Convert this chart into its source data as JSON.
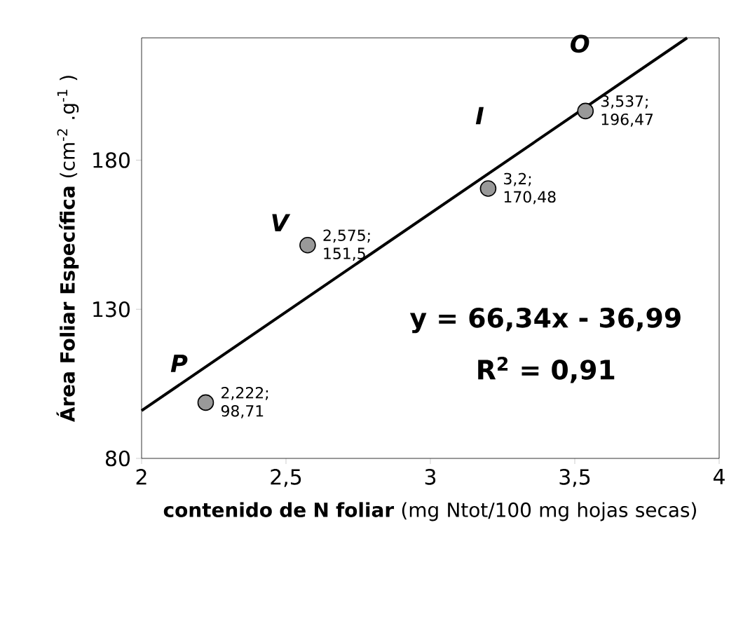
{
  "chart_data": {
    "type": "scatter",
    "xlabel": "**contenido de N foliar** (mg Ntot/100 mg hojas secas)",
    "ylabel": "**Área Foliar Específica** (cm$^{-2}$ .g$^{-1}$ )",
    "xlim": [
      2,
      4
    ],
    "ylim": [
      80,
      221
    ],
    "xticks": [
      2,
      {
        "value": 2.5,
        "label": "2,5"
      },
      3,
      {
        "value": 3.5,
        "label": "3,5"
      },
      4
    ],
    "yticks": [
      80,
      130,
      180
    ],
    "series": [
      {
        "marker": "circle",
        "color": "#999999",
        "x": [
          2.222,
          2.575,
          3.2,
          3.537
        ],
        "values": [
          98.71,
          151.5,
          170.48,
          196.47
        ],
        "value_labels": [
          "2,222; 98,71",
          "2,575; 151,5",
          "3,2; 170,48",
          "3,537; 196,47"
        ]
      },
      {
        "type": "line",
        "marker": "none",
        "color": "#000000",
        "x": [
          2,
          3.889
        ],
        "values": [
          96,
          221
        ]
      }
    ],
    "annotations": [
      {
        "text": "P",
        "x": 2.222,
        "y": 98.71
      },
      {
        "text": "V",
        "x": 2.575,
        "y": 151.5
      },
      {
        "text": "I",
        "x": 3.2,
        "y": 170.48
      },
      {
        "text": "O",
        "x": 3.537,
        "y": 196.47
      },
      "y = 66,34x - 36,99",
      "R$^{2}$ = 0,91"
    ]
  }
}
